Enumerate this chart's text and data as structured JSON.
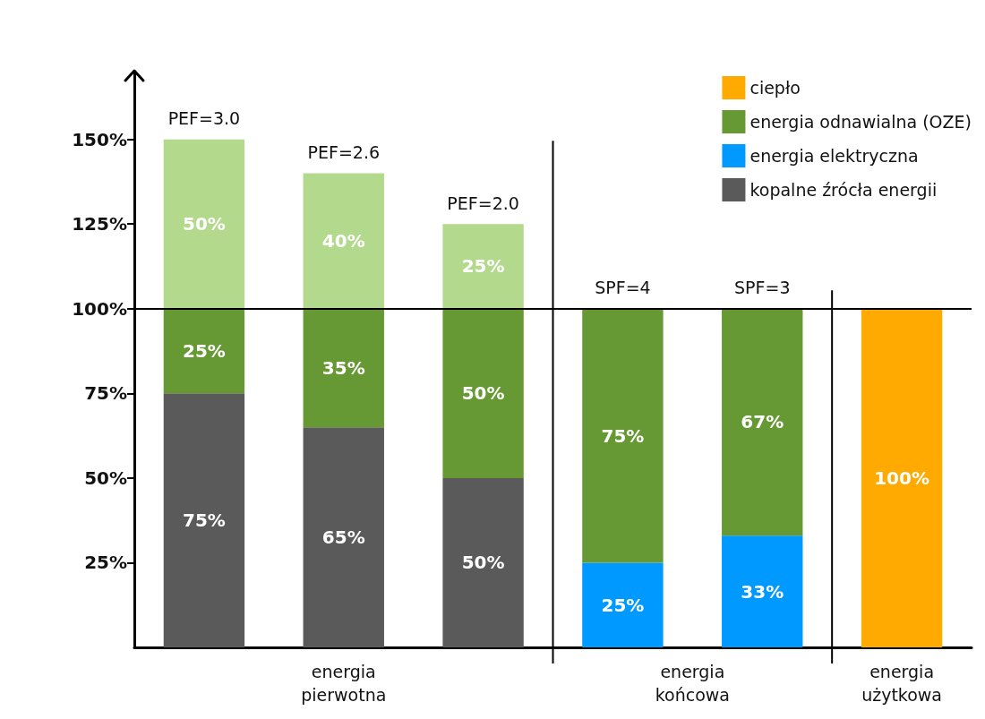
{
  "chart_data": {
    "type": "bar",
    "stacked": true,
    "categories": [
      null,
      null,
      null,
      null,
      null,
      null
    ],
    "series": [
      {
        "name": "kopalne źrócła energii",
        "color": "#5a5a5a",
        "values": [
          75,
          65,
          50,
          null,
          null,
          null
        ],
        "value_labels": [
          "75%",
          "65%",
          "50%",
          null,
          null,
          null
        ]
      },
      {
        "name": "energia elektryczna",
        "color": "#0099ff",
        "values": [
          null,
          null,
          null,
          25,
          33,
          null
        ],
        "value_labels": [
          null,
          null,
          null,
          "25%",
          "33%",
          null
        ]
      },
      {
        "name": "energia odnawialna (OZE)",
        "color": "#669933",
        "values": [
          25,
          35,
          50,
          75,
          67,
          null
        ],
        "value_labels": [
          "25%",
          "35%",
          "50%",
          "75%",
          "67%",
          null
        ]
      },
      {
        "color": "#b3d98c",
        "values": [
          50,
          40,
          25,
          null,
          null,
          null
        ],
        "value_labels": [
          "50%",
          "40%",
          "25%",
          null,
          null,
          null
        ]
      },
      {
        "name": "ciepło",
        "color": "#ffaa00",
        "values": [
          null,
          null,
          null,
          null,
          null,
          100
        ],
        "value_labels": [
          null,
          null,
          null,
          null,
          null,
          "100%"
        ]
      }
    ],
    "ylim": [
      0,
      170
    ],
    "yticks": [
      {
        "value": 25,
        "label": "25%"
      },
      {
        "value": 50,
        "label": "50%"
      },
      {
        "value": 75,
        "label": "75%"
      },
      {
        "value": 100,
        "label": "100%"
      },
      {
        "value": 125,
        "label": "125%"
      },
      {
        "value": 150,
        "label": "150%"
      }
    ],
    "ref_lines": [
      {
        "axis": "y",
        "value": 100,
        "color": "#000000"
      }
    ],
    "annotations": [
      "PEF=3.0",
      "PEF=2.6",
      "PEF=2.0",
      "SPF=4",
      "SPF=3",
      "energia\npierwotna",
      "energia\nkońcowa",
      "energia\nużytkowa"
    ],
    "legend": "top right",
    "grid": false
  }
}
